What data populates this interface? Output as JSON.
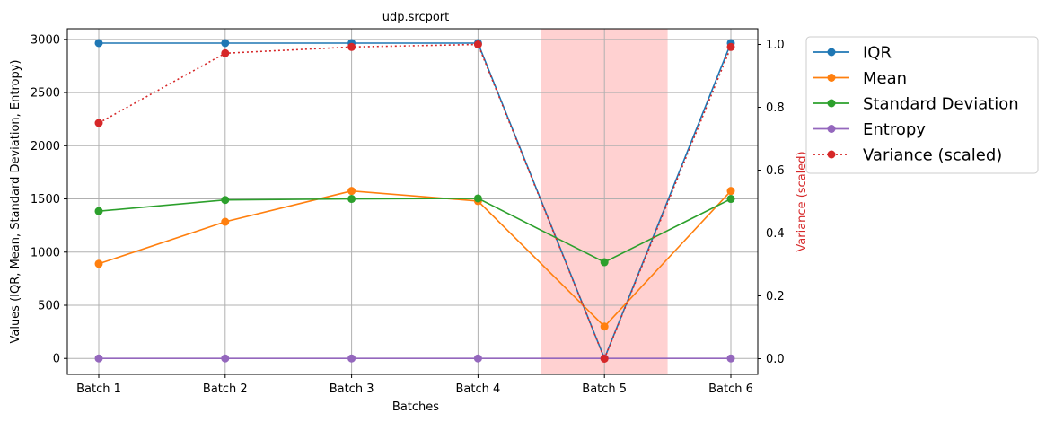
{
  "chart_data": {
    "type": "line",
    "title": "udp.srcport",
    "xlabel": "Batches",
    "ylabel_left": "Values (IQR, Mean, Standard Deviation, Entropy)",
    "ylabel_right": "Variance (scaled)",
    "categories": [
      "Batch 1",
      "Batch 2",
      "Batch 3",
      "Batch 4",
      "Batch 5",
      "Batch 6"
    ],
    "ylim_left": [
      -150,
      3100
    ],
    "yticks_left": [
      0,
      500,
      1000,
      1500,
      2000,
      2500,
      3000
    ],
    "ylim_right": [
      -0.05,
      1.05
    ],
    "yticks_right": [
      0.0,
      0.2,
      0.4,
      0.6,
      0.8,
      1.0
    ],
    "grid": true,
    "legend_position": "outside-right",
    "highlight": {
      "category": "Batch 5",
      "color": "#ffcccc"
    },
    "series": [
      {
        "name": "IQR",
        "axis": "left",
        "color": "#1f77b4",
        "style": "solid",
        "values": [
          2965,
          2965,
          2965,
          2965,
          0,
          2965
        ]
      },
      {
        "name": "Mean",
        "axis": "left",
        "color": "#ff7f0e",
        "style": "solid",
        "values": [
          890,
          1285,
          1575,
          1480,
          300,
          1575
        ]
      },
      {
        "name": "Standard Deviation",
        "axis": "left",
        "color": "#2ca02c",
        "style": "solid",
        "values": [
          1385,
          1490,
          1500,
          1505,
          905,
          1500
        ]
      },
      {
        "name": "Entropy",
        "axis": "left",
        "color": "#9467bd",
        "style": "solid",
        "values": [
          0,
          0,
          0,
          0,
          0,
          0
        ]
      },
      {
        "name": "Variance (scaled)",
        "axis": "right",
        "color": "#d62728",
        "style": "dotted",
        "values": [
          0.75,
          0.972,
          0.992,
          1.0,
          0.0,
          0.992
        ]
      }
    ]
  }
}
